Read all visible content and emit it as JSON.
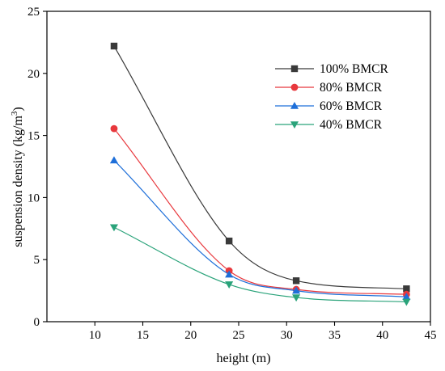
{
  "chart_data": {
    "type": "line",
    "xlabel": "height (m)",
    "ylabel": "suspension density (kg/m",
    "ylabel_sup": "3",
    "ylabel_close": ")",
    "xlim": [
      5,
      45
    ],
    "ylim": [
      0,
      25
    ],
    "xticks": [
      10,
      15,
      20,
      25,
      30,
      35,
      40,
      45
    ],
    "yticks": [
      0,
      5,
      10,
      15,
      20,
      25
    ],
    "grid": false,
    "legend_position": "top-right",
    "x": [
      12,
      24,
      31,
      42.5
    ],
    "series": [
      {
        "name": "100% BMCR",
        "values": [
          22.2,
          6.5,
          3.3,
          2.65
        ],
        "color": "#3a3a3a",
        "marker": "square"
      },
      {
        "name": "80% BMCR",
        "values": [
          15.55,
          4.1,
          2.6,
          2.2
        ],
        "color": "#e8383d",
        "marker": "circle"
      },
      {
        "name": "60% BMCR",
        "values": [
          13.0,
          3.8,
          2.5,
          2.0
        ],
        "color": "#1e6fd9",
        "marker": "triangle-up"
      },
      {
        "name": "40% BMCR",
        "values": [
          7.6,
          3.0,
          1.95,
          1.6
        ],
        "color": "#2aa37a",
        "marker": "triangle-down"
      }
    ]
  }
}
